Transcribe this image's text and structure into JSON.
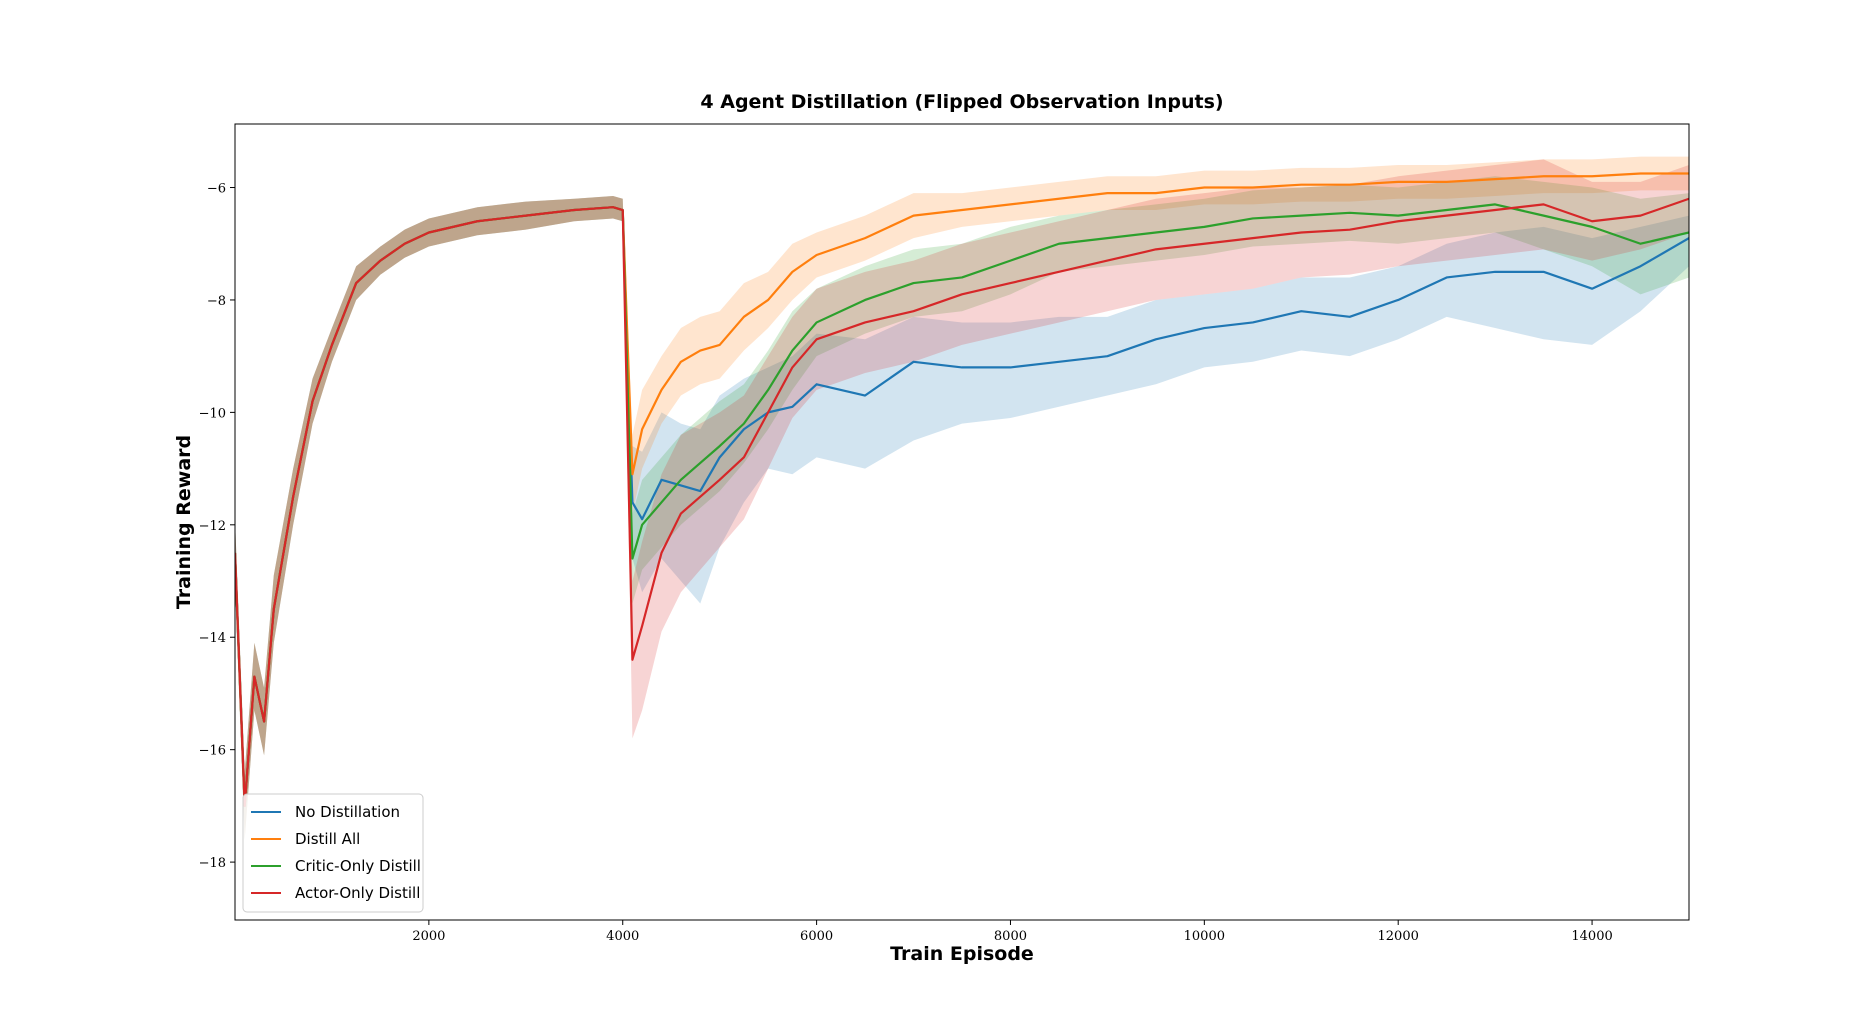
{
  "chart_data": {
    "type": "line",
    "title": "4 Agent Distillation (Flipped Observation Inputs)",
    "x_label": "Train Episode",
    "y_label": "Training Reward",
    "x": [
      0,
      100,
      200,
      300,
      400,
      600,
      800,
      1000,
      1250,
      1500,
      1750,
      2000,
      2500,
      3000,
      3500,
      3900,
      4000,
      4100,
      4200,
      4400,
      4600,
      4800,
      5000,
      5250,
      5500,
      5750,
      6000,
      6500,
      7000,
      7500,
      8000,
      8500,
      9000,
      9500,
      10000,
      10500,
      11000,
      11500,
      12000,
      12500,
      13000,
      13500,
      14000,
      14500,
      15000
    ],
    "xlim": [
      0,
      15000
    ],
    "ylim": [
      -19.03,
      -4.87
    ],
    "xticks": [
      2000,
      4000,
      6000,
      8000,
      10000,
      12000,
      14000
    ],
    "yticks": [
      {
        "value": -6,
        "label": "−6"
      },
      {
        "value": -8,
        "label": "−8"
      },
      {
        "value": -10,
        "label": "−10"
      },
      {
        "value": -12,
        "label": "−12"
      },
      {
        "value": -14,
        "label": "−14"
      },
      {
        "value": -16,
        "label": "−16"
      },
      {
        "value": -18,
        "label": "−18"
      }
    ],
    "legend": "lower left",
    "series": [
      {
        "name": "No Distillation",
        "color": "#1f77b4",
        "values": [
          -12.5,
          -17,
          -14.7,
          -15.5,
          -13.5,
          -11.5,
          -9.8,
          -8.8,
          -7.7,
          -7.3,
          -7.0,
          -6.8,
          -6.6,
          -6.5,
          -6.4,
          -6.35,
          -6.4,
          -11.6,
          -11.9,
          -11.2,
          -11.3,
          -11.4,
          -10.8,
          -10.3,
          -10.0,
          -9.9,
          -9.5,
          -9.7,
          -9.1,
          -9.2,
          -9.2,
          -9.1,
          -9.0,
          -8.7,
          -8.5,
          -8.4,
          -8.2,
          -8.3,
          -8.0,
          -7.6,
          -7.5,
          -7.5,
          -7.8,
          -7.4,
          -6.9
        ],
        "lower": [
          -13.1,
          -17.6,
          -15.3,
          -16.1,
          -14.1,
          -12.0,
          -10.2,
          -9.1,
          -8.0,
          -7.55,
          -7.25,
          -7.05,
          -6.85,
          -6.75,
          -6.6,
          -6.55,
          -6.6,
          -12.6,
          -13.2,
          -12.6,
          -13.0,
          -13.4,
          -12.4,
          -11.6,
          -11.0,
          -11.1,
          -10.8,
          -11.0,
          -10.5,
          -10.2,
          -10.1,
          -9.9,
          -9.7,
          -9.5,
          -9.2,
          -9.1,
          -8.9,
          -9.0,
          -8.7,
          -8.3,
          -8.5,
          -8.7,
          -8.8,
          -8.2,
          -7.4
        ],
        "upper": [
          -11.9,
          -16.4,
          -14.1,
          -14.9,
          -12.9,
          -11.0,
          -9.4,
          -8.5,
          -7.4,
          -7.05,
          -6.75,
          -6.55,
          -6.35,
          -6.25,
          -6.2,
          -6.15,
          -6.2,
          -10.6,
          -10.7,
          -10.0,
          -10.2,
          -10.3,
          -9.7,
          -9.4,
          -9.2,
          -9.0,
          -8.6,
          -8.7,
          -8.3,
          -8.4,
          -8.4,
          -8.3,
          -8.3,
          -8.0,
          -7.9,
          -7.8,
          -7.6,
          -7.6,
          -7.4,
          -7.0,
          -6.8,
          -6.7,
          -6.9,
          -6.7,
          -6.5
        ]
      },
      {
        "name": "Distill All",
        "color": "#ff7f0e",
        "values": [
          -12.5,
          -17,
          -14.7,
          -15.5,
          -13.5,
          -11.5,
          -9.8,
          -8.8,
          -7.7,
          -7.3,
          -7.0,
          -6.8,
          -6.6,
          -6.5,
          -6.4,
          -6.35,
          -6.4,
          -11.1,
          -10.3,
          -9.6,
          -9.1,
          -8.9,
          -8.8,
          -8.3,
          -8.0,
          -7.5,
          -7.2,
          -6.9,
          -6.5,
          -6.4,
          -6.3,
          -6.2,
          -6.1,
          -6.1,
          -6.0,
          -6.0,
          -5.95,
          -5.95,
          -5.9,
          -5.9,
          -5.85,
          -5.8,
          -5.8,
          -5.75,
          -5.75
        ],
        "lower": [
          -13.1,
          -17.6,
          -15.3,
          -16.1,
          -14.1,
          -12.0,
          -10.2,
          -9.1,
          -8.0,
          -7.55,
          -7.25,
          -7.05,
          -6.85,
          -6.75,
          -6.6,
          -6.55,
          -6.6,
          -11.8,
          -11.0,
          -10.2,
          -9.7,
          -9.5,
          -9.4,
          -8.9,
          -8.5,
          -8.0,
          -7.6,
          -7.3,
          -6.9,
          -6.7,
          -6.6,
          -6.5,
          -6.4,
          -6.4,
          -6.3,
          -6.3,
          -6.25,
          -6.25,
          -6.2,
          -6.2,
          -6.15,
          -6.1,
          -6.1,
          -6.05,
          -6.05
        ],
        "upper": [
          -11.9,
          -16.4,
          -14.1,
          -14.9,
          -12.9,
          -11.0,
          -9.4,
          -8.5,
          -7.4,
          -7.05,
          -6.75,
          -6.55,
          -6.35,
          -6.25,
          -6.2,
          -6.15,
          -6.2,
          -10.4,
          -9.6,
          -9.0,
          -8.5,
          -8.3,
          -8.2,
          -7.7,
          -7.5,
          -7.0,
          -6.8,
          -6.5,
          -6.1,
          -6.1,
          -6.0,
          -5.9,
          -5.8,
          -5.8,
          -5.7,
          -5.7,
          -5.65,
          -5.65,
          -5.6,
          -5.6,
          -5.55,
          -5.5,
          -5.5,
          -5.45,
          -5.45
        ]
      },
      {
        "name": "Critic-Only Distill",
        "color": "#2ca02c",
        "values": [
          -12.5,
          -17,
          -14.7,
          -15.5,
          -13.5,
          -11.5,
          -9.8,
          -8.8,
          -7.7,
          -7.3,
          -7.0,
          -6.8,
          -6.6,
          -6.5,
          -6.4,
          -6.35,
          -6.4,
          -12.6,
          -12.0,
          -11.6,
          -11.2,
          -10.9,
          -10.6,
          -10.2,
          -9.6,
          -8.9,
          -8.4,
          -8.0,
          -7.7,
          -7.6,
          -7.3,
          -7.0,
          -6.9,
          -6.8,
          -6.7,
          -6.55,
          -6.5,
          -6.45,
          -6.5,
          -6.4,
          -6.3,
          -6.5,
          -6.7,
          -7.0,
          -6.8
        ],
        "lower": [
          -13.1,
          -17.6,
          -15.3,
          -16.1,
          -14.1,
          -12.0,
          -10.2,
          -9.1,
          -8.0,
          -7.55,
          -7.25,
          -7.05,
          -6.85,
          -6.75,
          -6.6,
          -6.55,
          -6.6,
          -13.4,
          -12.8,
          -12.4,
          -12.0,
          -11.7,
          -11.4,
          -10.9,
          -10.3,
          -9.6,
          -9.0,
          -8.6,
          -8.3,
          -8.2,
          -7.9,
          -7.5,
          -7.4,
          -7.3,
          -7.2,
          -7.05,
          -7.0,
          -6.95,
          -7.0,
          -6.9,
          -6.8,
          -7.1,
          -7.4,
          -7.9,
          -7.6
        ],
        "upper": [
          -11.9,
          -16.4,
          -14.1,
          -14.9,
          -12.9,
          -11.0,
          -9.4,
          -8.5,
          -7.4,
          -7.05,
          -6.75,
          -6.55,
          -6.35,
          -6.25,
          -6.2,
          -6.15,
          -6.2,
          -11.8,
          -11.2,
          -10.8,
          -10.4,
          -10.1,
          -9.8,
          -9.5,
          -8.9,
          -8.2,
          -7.8,
          -7.4,
          -7.1,
          -7.0,
          -6.7,
          -6.5,
          -6.4,
          -6.3,
          -6.2,
          -6.05,
          -6.0,
          -5.95,
          -6.0,
          -5.9,
          -5.8,
          -5.9,
          -6.0,
          -6.2,
          -6.1
        ]
      },
      {
        "name": "Actor-Only Distill",
        "color": "#d62728",
        "values": [
          -12.5,
          -17,
          -14.7,
          -15.5,
          -13.5,
          -11.5,
          -9.8,
          -8.8,
          -7.7,
          -7.3,
          -7.0,
          -6.8,
          -6.6,
          -6.5,
          -6.4,
          -6.35,
          -6.4,
          -14.4,
          -13.8,
          -12.5,
          -11.8,
          -11.5,
          -11.2,
          -10.8,
          -10.0,
          -9.2,
          -8.7,
          -8.4,
          -8.2,
          -7.9,
          -7.7,
          -7.5,
          -7.3,
          -7.1,
          -7.0,
          -6.9,
          -6.8,
          -6.75,
          -6.6,
          -6.5,
          -6.4,
          -6.3,
          -6.6,
          -6.5,
          -6.2
        ],
        "lower": [
          -13.1,
          -17.6,
          -15.3,
          -16.1,
          -14.1,
          -12.0,
          -10.2,
          -9.1,
          -8.0,
          -7.55,
          -7.25,
          -7.05,
          -6.85,
          -6.75,
          -6.6,
          -6.55,
          -6.6,
          -15.8,
          -15.3,
          -13.9,
          -13.2,
          -12.8,
          -12.4,
          -11.9,
          -11.0,
          -10.1,
          -9.6,
          -9.3,
          -9.1,
          -8.8,
          -8.6,
          -8.4,
          -8.2,
          -8.0,
          -7.9,
          -7.8,
          -7.6,
          -7.55,
          -7.4,
          -7.3,
          -7.2,
          -7.1,
          -7.3,
          -7.1,
          -6.8
        ],
        "upper": [
          -11.9,
          -16.4,
          -14.1,
          -14.9,
          -12.9,
          -11.0,
          -9.4,
          -8.5,
          -7.4,
          -7.05,
          -6.75,
          -6.55,
          -6.35,
          -6.25,
          -6.2,
          -6.15,
          -6.2,
          -13.0,
          -12.3,
          -11.1,
          -10.4,
          -10.2,
          -10.0,
          -9.7,
          -9.0,
          -8.3,
          -7.8,
          -7.5,
          -7.3,
          -7.0,
          -6.8,
          -6.6,
          -6.4,
          -6.2,
          -6.1,
          -6.0,
          -6.0,
          -5.95,
          -5.8,
          -5.7,
          -5.6,
          -5.5,
          -5.9,
          -5.9,
          -5.6
        ]
      }
    ]
  }
}
